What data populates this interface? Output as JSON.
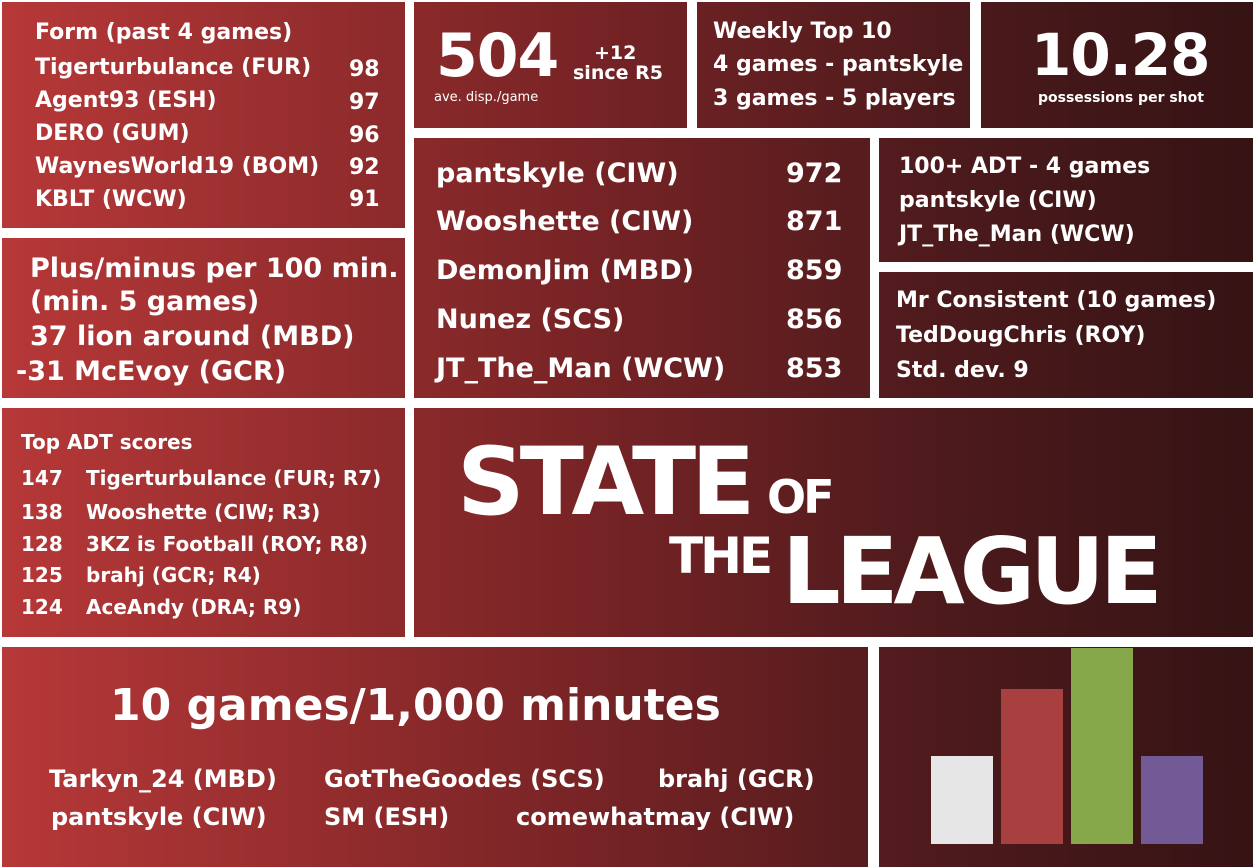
{
  "form": {
    "title": "Form (past 4 games)",
    "rows": [
      {
        "name": "Tigerturbulance (FUR)",
        "value": "98"
      },
      {
        "name": "Agent93 (ESH)",
        "value": "97"
      },
      {
        "name": "DERO (GUM)",
        "value": "96"
      },
      {
        "name": "WaynesWorld19 (BOM)",
        "value": "92"
      },
      {
        "name": "KBLT (WCW)",
        "value": "91"
      }
    ]
  },
  "disposals": {
    "value": "504",
    "change": "+12",
    "change_note": "since R5",
    "label": "ave. disp./game"
  },
  "weekly_top10": {
    "title": "Weekly Top 10",
    "line1": "4 games - pantskyle",
    "line2": "3 games - 5 players"
  },
  "possessions": {
    "value": "10.28",
    "label": "possessions per shot"
  },
  "plus_minus": {
    "title": "Plus/minus per 100 min.",
    "subtitle": "(min. 5 games)",
    "best": "37 lion around (MBD)",
    "worst": "-31 McEvoy (GCR)"
  },
  "leaders": {
    "rows": [
      {
        "name": "pantskyle (CIW)",
        "value": "972"
      },
      {
        "name": "Wooshette (CIW)",
        "value": "871"
      },
      {
        "name": "DemonJim (MBD)",
        "value": "859"
      },
      {
        "name": "Nunez (SCS)",
        "value": "856"
      },
      {
        "name": "JT_The_Man (WCW)",
        "value": "853"
      }
    ]
  },
  "adt100": {
    "title": "100+ ADT - 4 games",
    "players": [
      "pantskyle (CIW)",
      "JT_The_Man (WCW)"
    ]
  },
  "consistent": {
    "title": "Mr Consistent (10 games)",
    "player": "TedDougChris (ROY)",
    "stat": "Std. dev. 9"
  },
  "top_adt": {
    "title": "Top ADT scores",
    "rows": [
      {
        "score": "147",
        "name": "Tigerturbulance (FUR; R7)"
      },
      {
        "score": "138",
        "name": "Wooshette (CIW; R3)"
      },
      {
        "score": "128",
        "name": "3KZ is Football (ROY; R8)"
      },
      {
        "score": "125",
        "name": "brahj (GCR; R4)"
      },
      {
        "score": "124",
        "name": "AceAndy (DRA; R9)"
      }
    ]
  },
  "logo": {
    "word1": "STATE",
    "word2": "OF",
    "word3": "THE",
    "word4": "LEAGUE"
  },
  "milestones": {
    "title": "10 games/1,000 minutes",
    "players": [
      "Tarkyn_24 (MBD)",
      "GotTheGoodes (SCS)",
      "brahj (GCR)",
      "pantskyle (CIW)",
      "SM (ESH)",
      "comewhatmay (CIW)"
    ]
  },
  "bars": {
    "colors": [
      "#e6e6e6",
      "#a84040",
      "#86a84a",
      "#725a96"
    ],
    "levels": [
      0.45,
      0.79,
      1.0,
      0.45
    ]
  }
}
